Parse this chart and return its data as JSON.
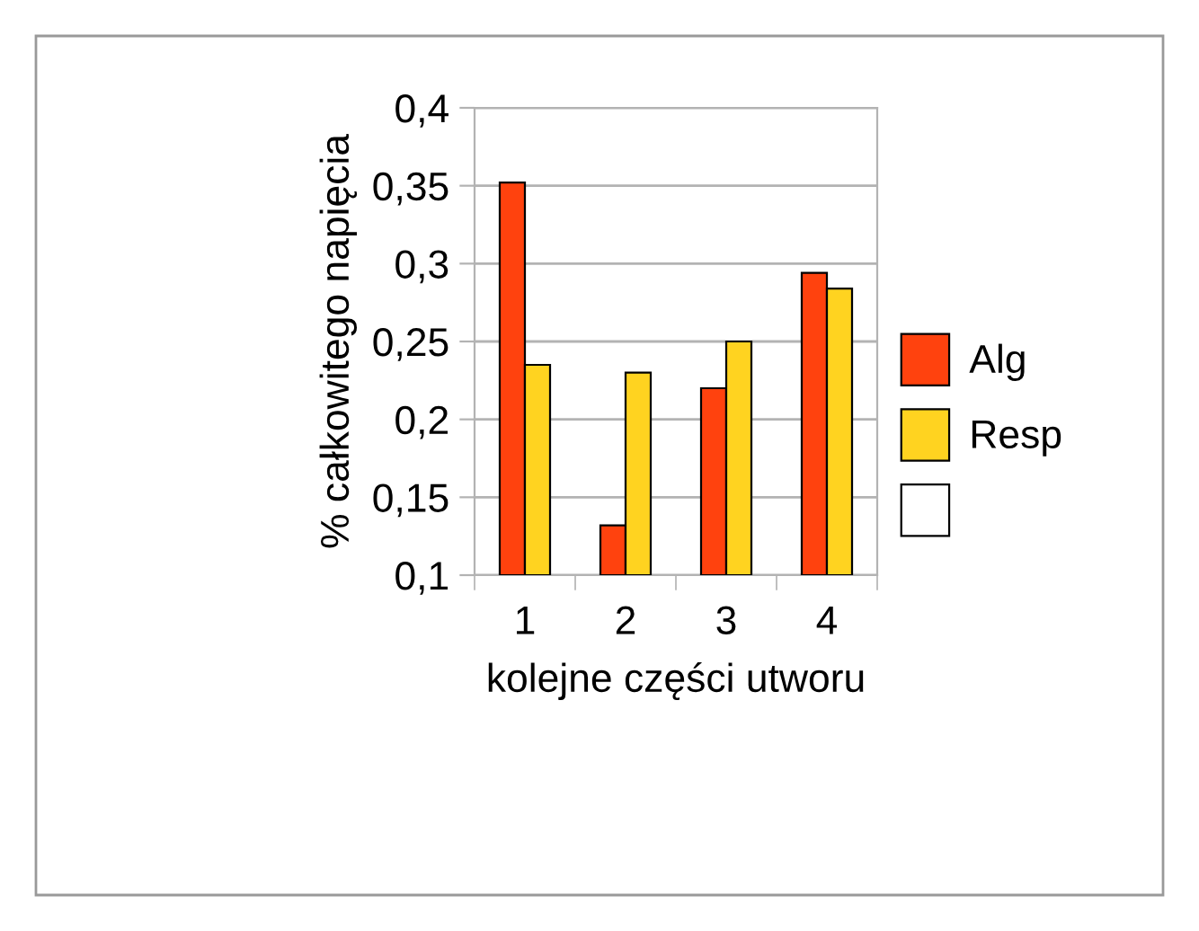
{
  "chart_data": {
    "type": "bar",
    "xlabel": "kolejne części utworu",
    "ylabel": "% całkowitego napięcia",
    "categories": [
      "1",
      "2",
      "3",
      "4"
    ],
    "series": [
      {
        "name": "Alg",
        "color": "#ff420e",
        "values": [
          0.352,
          0.132,
          0.22,
          0.294
        ]
      },
      {
        "name": "Resp",
        "color": "#ffd320",
        "values": [
          0.235,
          0.23,
          0.25,
          0.284
        ]
      },
      {
        "color": "#ffffff",
        "values": [
          null,
          null,
          null,
          null
        ]
      }
    ],
    "ylim": [
      0.1,
      0.4
    ],
    "yticks": [
      {
        "value": 0.1,
        "label": "0,1"
      },
      {
        "value": 0.15,
        "label": "0,15"
      },
      {
        "value": 0.2,
        "label": "0,2"
      },
      {
        "value": 0.25,
        "label": "0,25"
      },
      {
        "value": 0.3,
        "label": "0,3"
      },
      {
        "value": 0.35,
        "label": "0,35"
      },
      {
        "value": 0.4,
        "label": "0,4"
      }
    ],
    "grid": "y",
    "legend": "right"
  }
}
